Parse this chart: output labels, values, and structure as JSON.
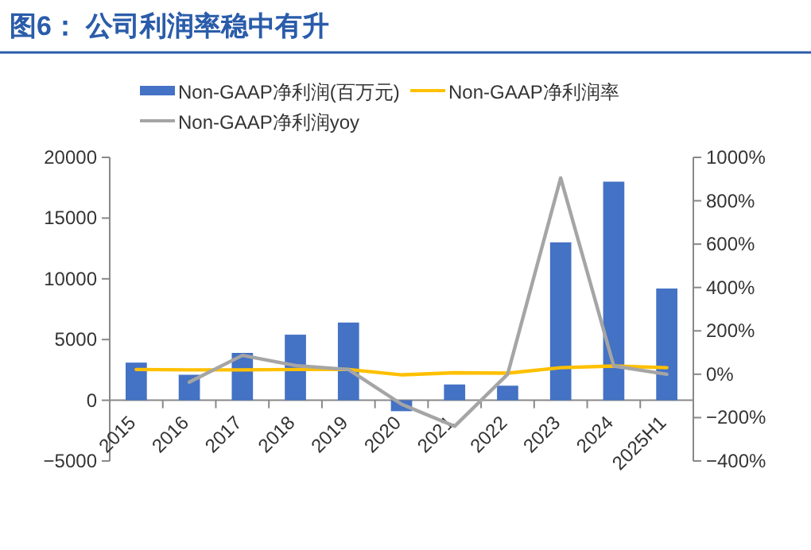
{
  "chart_data": {
    "type": "bar",
    "title": "图6： 公司利润率稳中有升",
    "categories": [
      "2015",
      "2016",
      "2017",
      "2018",
      "2019",
      "2020",
      "2021",
      "2022",
      "2023",
      "2024",
      "2025H1"
    ],
    "series": [
      {
        "name": "Non-GAAP净利润(百万元)",
        "color": "#4472c4",
        "values": [
          3100,
          2100,
          3900,
          5400,
          6400,
          -900,
          1300,
          1200,
          13000,
          18000,
          9200
        ]
      },
      {
        "name": "Non-GAAP净利润率",
        "type": "line",
        "axis": "y2",
        "color": "#ffc000",
        "values": [
          22,
          20,
          20,
          22,
          22,
          -3,
          7,
          5,
          30,
          38,
          30
        ]
      },
      {
        "name": "Non-GAAP净利润yoy",
        "type": "line",
        "axis": "y2",
        "color": "#a5a5a5",
        "values": [
          null,
          -36,
          87,
          40,
          22,
          -138,
          -240,
          0,
          905,
          38,
          0
        ]
      }
    ],
    "ylim": [
      -5000,
      20000
    ],
    "yticks": [
      {
        "value": -5000,
        "label": "−5000"
      },
      0,
      5000,
      10000,
      15000,
      20000
    ],
    "y2lim": [
      -400,
      1000
    ],
    "y2ticks": [
      {
        "value": -400,
        "label": "−400%"
      },
      {
        "value": -200,
        "label": "−200%"
      },
      {
        "value": 0,
        "label": "0%"
      },
      {
        "value": 200,
        "label": "200%"
      },
      {
        "value": 400,
        "label": "400%"
      },
      {
        "value": 600,
        "label": "600%"
      },
      {
        "value": 800,
        "label": "800%"
      },
      {
        "value": 1000,
        "label": "1000%"
      }
    ],
    "grid": false,
    "legend": "top"
  }
}
